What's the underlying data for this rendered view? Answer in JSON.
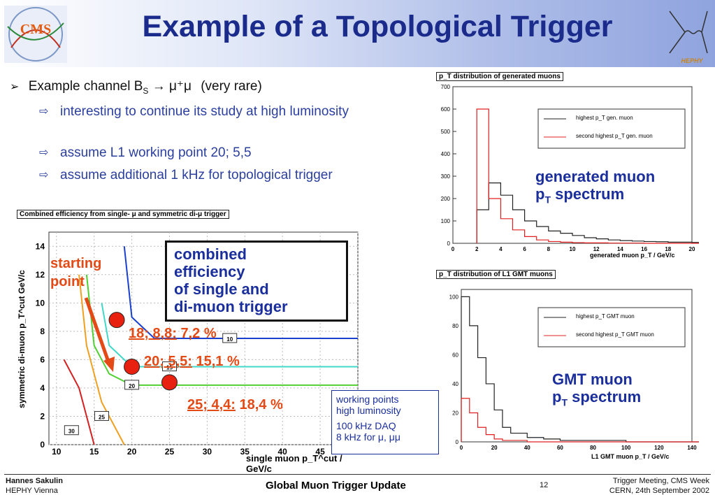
{
  "header": {
    "title": "Example of a Topological Trigger",
    "cms_logo_text": "CMS",
    "hephy_logo_text": "HEPHY"
  },
  "bullets": {
    "main": {
      "prefix": "Example channel B",
      "sub": "S",
      "arrow": "→",
      "muons": "μ⁺μ",
      "suffix": "(very rare)"
    },
    "items": [
      "interesting to continue its study at high luminosity",
      "assume L1 working point 20; 5,5",
      "assume additional 1 kHz for topological  trigger"
    ]
  },
  "chart_top": {
    "title": "p_T distribution of generated muons",
    "y_ticks": [
      "700",
      "600",
      "500",
      "400",
      "300",
      "200",
      "100",
      "0"
    ],
    "x_ticks": [
      "0",
      "2",
      "4",
      "6",
      "8",
      "10",
      "12",
      "14",
      "16",
      "18",
      "20"
    ],
    "xlabel": "generated muon p_T / GeV/c",
    "legend": [
      "highest p_T gen. muon",
      "second highest p_T gen. muon"
    ],
    "caption_line1": "generated muon",
    "caption_line2": "p",
    "caption_sub": "T",
    "caption_line2b": " spectrum"
  },
  "chart_bottom": {
    "title": "p_T distribution of L1 GMT muons",
    "y_ticks": [
      "100",
      "80",
      "60",
      "40",
      "20",
      "0"
    ],
    "x_ticks": [
      "0",
      "20",
      "40",
      "60",
      "80",
      "100",
      "120",
      "140"
    ],
    "xlabel": "L1 GMT muon p_T / GeV/c",
    "legend": [
      "highest p_T GMT muon",
      "second highest p_T GMT muon"
    ],
    "caption_line1": "GMT muon",
    "caption_line2": "p",
    "caption_sub": "T",
    "caption_line2b": " spectrum"
  },
  "chart_main": {
    "title": "Combined efficiency from single- μ and symmetric di-μ trigger",
    "y_ticks": [
      "14",
      "12",
      "10",
      "8",
      "6",
      "4",
      "2",
      "0"
    ],
    "x_ticks": [
      "10",
      "15",
      "20",
      "25",
      "30",
      "35",
      "40",
      "45"
    ],
    "ylabel": "symmetric di-muon p_T^cut GeV/c",
    "xlabel": "single muon p_T^cut / GeV/c",
    "contour_labels": [
      "30",
      "25",
      "20",
      "15",
      "10"
    ],
    "box_text": [
      "combined",
      "efficiency",
      "of single and",
      "di-muon trigger"
    ],
    "starting_point": [
      "starting",
      "point"
    ],
    "wp1": {
      "underlined": "18; 8,8:",
      "rest": " 7,2 %"
    },
    "wp2": {
      "underlined": "20; 5,5:",
      "rest": " 15,1 %"
    },
    "wp3": {
      "underlined": "25; 4,4:",
      "rest": " 18,4 %"
    },
    "info_box": [
      "working points",
      "high luminosity",
      "100 kHz DAQ",
      "8 kHz for μ, μμ"
    ]
  },
  "chart_data": [
    {
      "type": "line",
      "title": "p_T distribution of generated muons",
      "xlabel": "generated muon p_T / GeV/c",
      "ylabel": "",
      "xlim": [
        0,
        20
      ],
      "ylim": [
        0,
        700
      ],
      "x": [
        2,
        3,
        4,
        5,
        6,
        7,
        8,
        9,
        10,
        11,
        12,
        13,
        14,
        15,
        16,
        17,
        18,
        19,
        20
      ],
      "series": [
        {
          "name": "highest p_T gen. muon",
          "values": [
            150,
            270,
            215,
            150,
            100,
            75,
            55,
            45,
            35,
            25,
            20,
            15,
            12,
            10,
            8,
            7,
            5,
            5,
            4
          ]
        },
        {
          "name": "second highest p_T gen. muon",
          "values": [
            600,
            200,
            110,
            60,
            30,
            15,
            8,
            5,
            3,
            2,
            2,
            1,
            1,
            1,
            0,
            0,
            0,
            0,
            0
          ]
        }
      ]
    },
    {
      "type": "line",
      "title": "p_T distribution of L1 GMT muons",
      "xlabel": "L1 GMT muon p_T / GeV/c",
      "ylabel": "",
      "xlim": [
        0,
        140
      ],
      "ylim": [
        0,
        105
      ],
      "x": [
        0,
        5,
        10,
        15,
        20,
        25,
        30,
        40,
        50,
        60,
        80,
        100,
        140
      ],
      "series": [
        {
          "name": "highest p_T GMT muon",
          "values": [
            100,
            80,
            58,
            40,
            22,
            10,
            6,
            3,
            2,
            1,
            1,
            0,
            0
          ]
        },
        {
          "name": "second highest p_T GMT muon",
          "values": [
            30,
            20,
            10,
            5,
            2,
            1,
            1,
            0,
            0,
            0,
            0,
            0,
            0
          ]
        }
      ]
    },
    {
      "type": "line",
      "title": "Combined efficiency from single- μ and symmetric di-μ trigger",
      "xlabel": "single muon p_T^cut / GeV/c",
      "ylabel": "symmetric di-muon p_T^cut GeV/c",
      "xlim": [
        9,
        50
      ],
      "ylim": [
        0,
        15
      ],
      "series": [
        {
          "name": "30",
          "values": [
            [
              11,
              6
            ],
            [
              13,
              4
            ],
            [
              14,
              2
            ],
            [
              15,
              0
            ]
          ]
        },
        {
          "name": "25",
          "values": [
            [
              13,
              12
            ],
            [
              14,
              7
            ],
            [
              16,
              3
            ],
            [
              18,
              1
            ],
            [
              19,
              0
            ]
          ]
        },
        {
          "name": "20",
          "values": [
            [
              14,
              12
            ],
            [
              15,
              7
            ],
            [
              17,
              5
            ],
            [
              20,
              4.2
            ],
            [
              50,
              4.2
            ]
          ]
        },
        {
          "name": "15",
          "values": [
            [
              16,
              10
            ],
            [
              17,
              7
            ],
            [
              20,
              5.5
            ],
            [
              50,
              5.5
            ]
          ]
        },
        {
          "name": "10",
          "values": [
            [
              19,
              14
            ],
            [
              20,
              9
            ],
            [
              23,
              7.5
            ],
            [
              50,
              7.5
            ]
          ]
        }
      ],
      "points": [
        {
          "label": "18; 8,8",
          "x": 18,
          "y": 8.8
        },
        {
          "label": "20; 5,5",
          "x": 20,
          "y": 5.5
        },
        {
          "label": "25; 4,4",
          "x": 25,
          "y": 4.4
        }
      ]
    }
  ],
  "footer": {
    "author": "Hannes Sakulin",
    "institute": "HEPHY Vienna",
    "center": "Global Muon Trigger Update",
    "page": "12",
    "meeting": "Trigger Meeting, CMS Week",
    "place_date": "CERN, 24th September 2002"
  },
  "colors": {
    "title": "#1a2b8c",
    "accent_red": "#e34a16",
    "blue_text": "#1a2e9c"
  }
}
